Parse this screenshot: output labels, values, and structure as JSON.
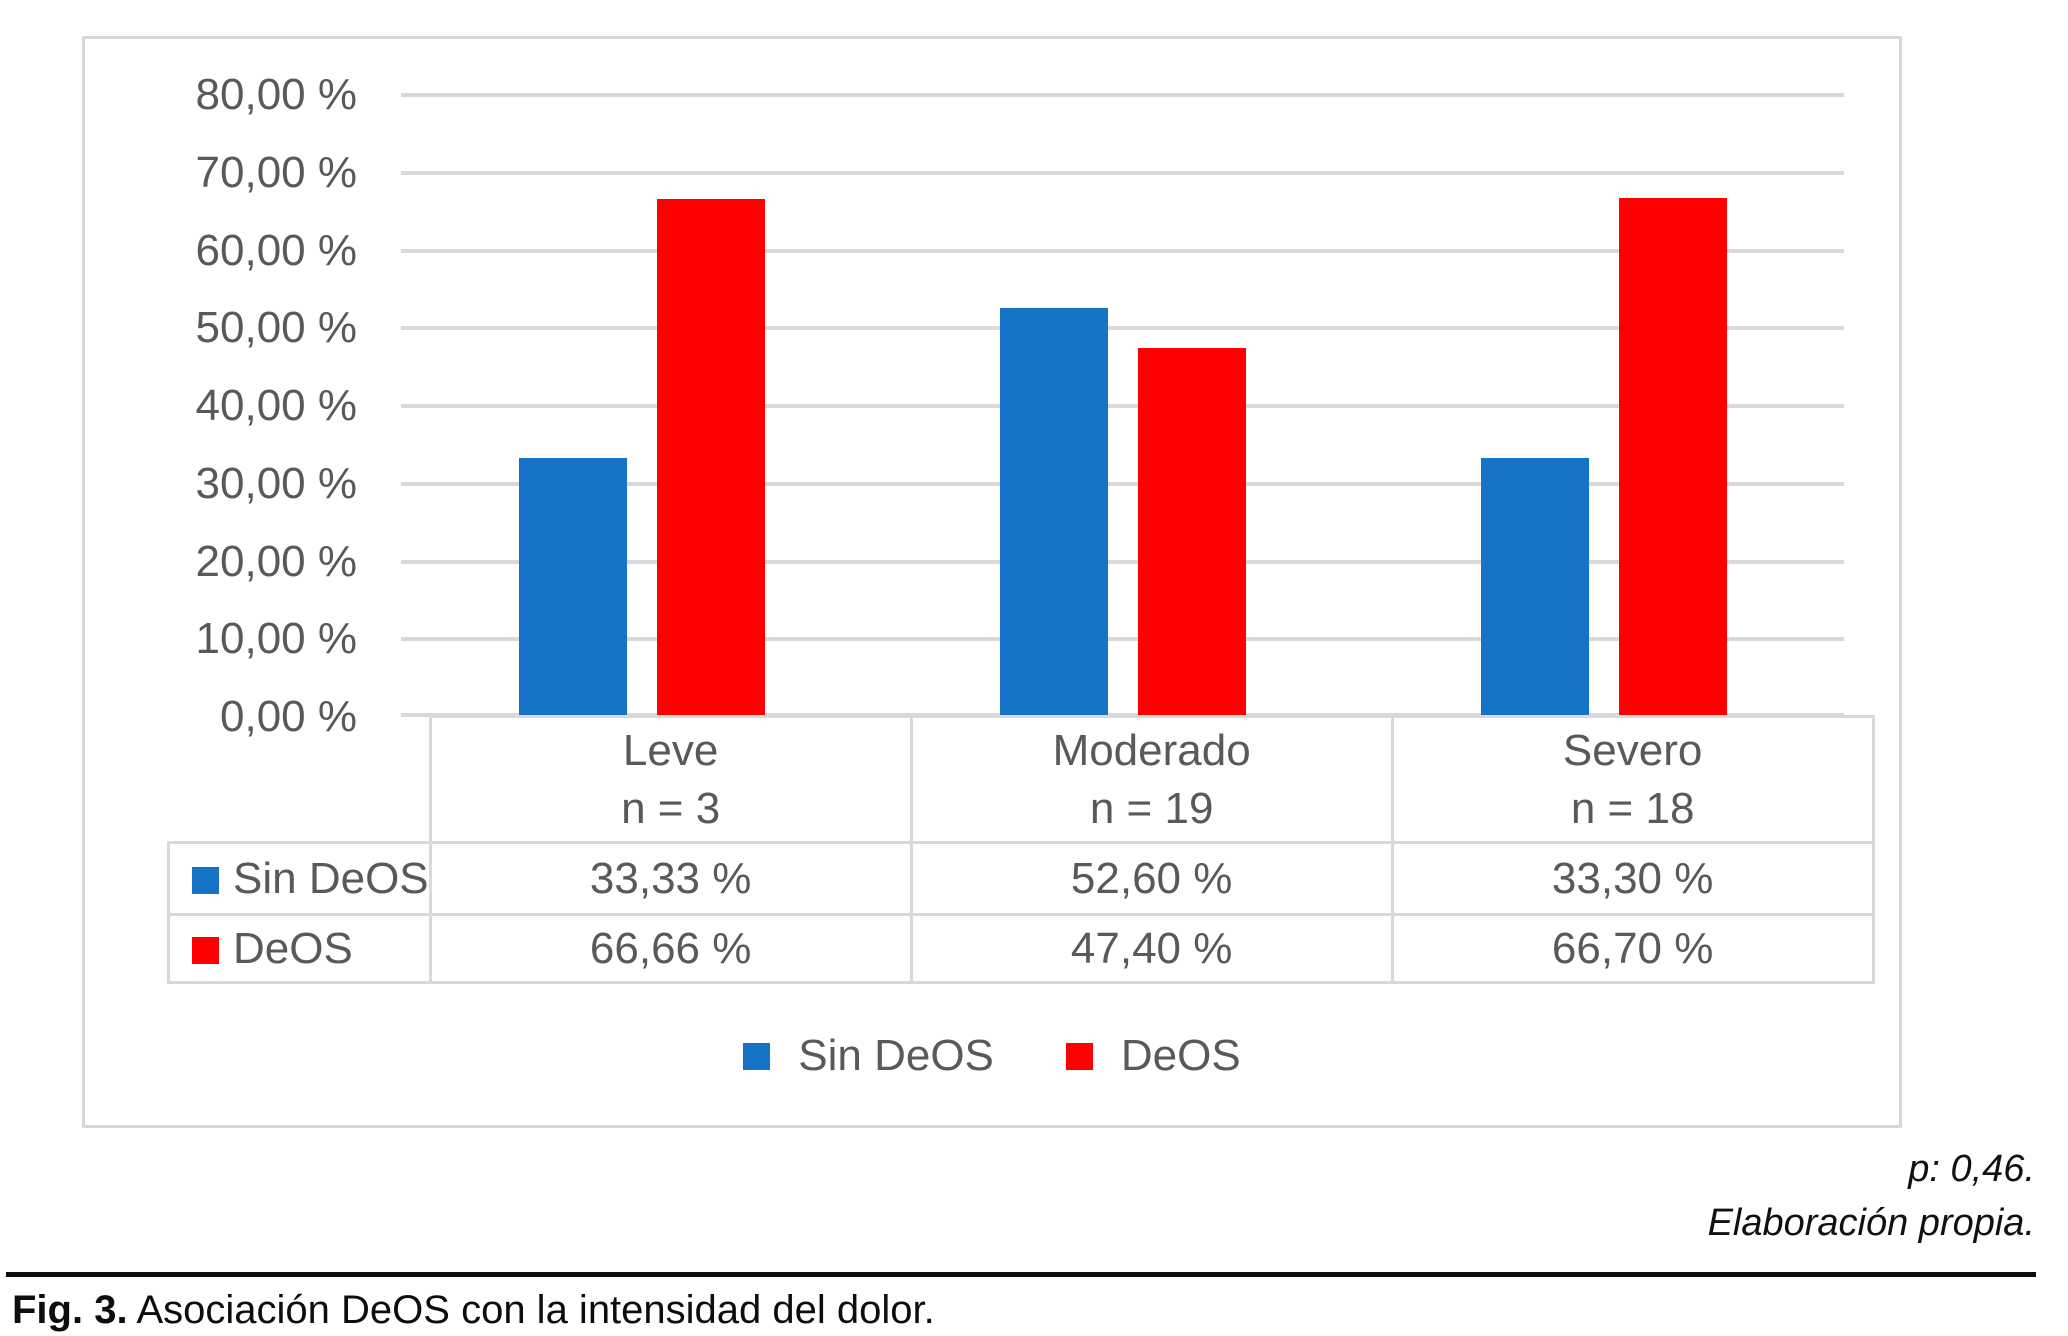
{
  "figure": {
    "caption_label": "Fig. 3.",
    "caption_text": "Asociación DeOS con la intensidad del dolor.",
    "footnotes": [
      "p: 0,46.",
      "Elaboración propia."
    ]
  },
  "chart_data": {
    "type": "bar",
    "title": "",
    "xlabel": "",
    "ylabel": "",
    "categories": [
      "Leve",
      "Moderado",
      "Severo"
    ],
    "category_sublabels": [
      "n = 3",
      "n = 19",
      "n = 18"
    ],
    "series": [
      {
        "name": "Sin DeOS",
        "color": "#1773c8",
        "values": [
          33.33,
          52.6,
          33.3
        ],
        "display_values": [
          "33,33 %",
          "52,60 %",
          "33,30 %"
        ]
      },
      {
        "name": "DeOS",
        "color": "#ff0000",
        "values": [
          66.66,
          47.4,
          66.7
        ],
        "display_values": [
          "66,66 %",
          "47,40 %",
          "66,70 %"
        ]
      }
    ],
    "ylim": [
      0,
      80
    ],
    "ytick_step": 10,
    "ytick_labels": [
      "0,00 %",
      "10,00 %",
      "20,00 %",
      "30,00 %",
      "40,00 %",
      "50,00 %",
      "60,00 %",
      "70,00 %",
      "80,00 %"
    ],
    "grid": true,
    "legend_position": "bottom",
    "colors": {
      "grid": "#d9d9d9",
      "frame": "#d8d8d8",
      "text": "#595959"
    }
  }
}
